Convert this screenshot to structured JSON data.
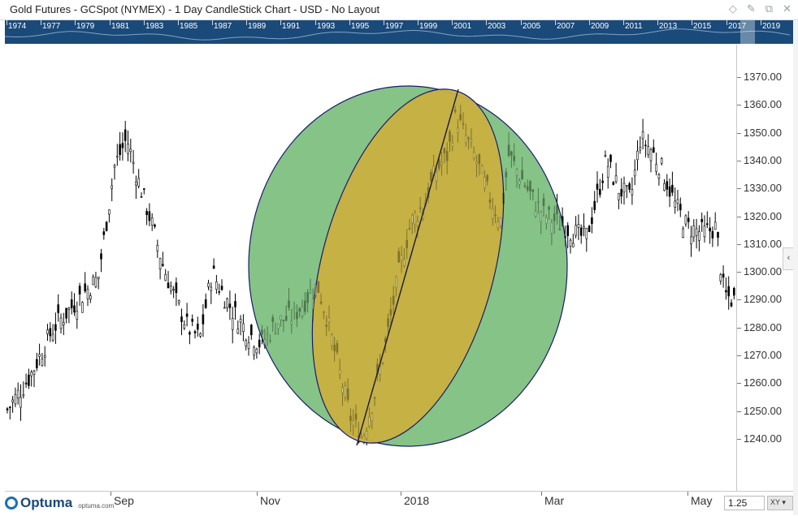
{
  "window": {
    "title": "Gold Futures - GCSpot (NYMEX) - 1 Day CandleStick Chart - USD - No Layout",
    "icons": [
      "diamond-icon",
      "pin-icon",
      "restore-icon",
      "close-icon"
    ]
  },
  "timeline": {
    "years": [
      "1974",
      "1977",
      "1979",
      "1981",
      "1983",
      "1985",
      "1987",
      "1989",
      "1991",
      "1993",
      "1995",
      "1997",
      "1999",
      "2001",
      "2003",
      "2005",
      "2007",
      "2009",
      "2011",
      "2013",
      "2015",
      "2017",
      "2019"
    ],
    "background": "#1a4a7a"
  },
  "y_axis": {
    "ticks": [
      "1370.00",
      "1360.00",
      "1350.00",
      "1340.00",
      "1330.00",
      "1320.00",
      "1310.00",
      "1300.00",
      "1290.00",
      "1280.00",
      "1270.00",
      "1260.00",
      "1250.00",
      "1240.00"
    ],
    "current_value_label": "1310.00"
  },
  "x_axis": {
    "labels": [
      "Sep",
      "Nov",
      "2018",
      "Mar",
      "May"
    ]
  },
  "footer": {
    "logo": "Optuma",
    "logo_sub": "optuma.com",
    "zoom_value": "1.25",
    "xy_label": "XY"
  },
  "chart_data": {
    "type": "candlestick",
    "ylim": [
      1232,
      1377
    ],
    "candle_color": "#000000",
    "drawing": {
      "tool": "sphere",
      "outer_fill": "#80c080",
      "inner_fill": "#c8b040",
      "outline": "#1a1a6e",
      "line_from": [
        1238,
        "2017-12-13"
      ],
      "line_to": [
        1366,
        "2018-01-25"
      ]
    }
  }
}
